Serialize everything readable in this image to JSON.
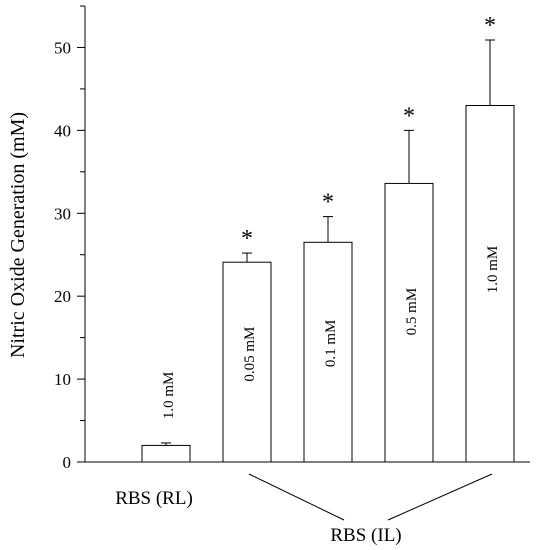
{
  "chart_data": {
    "type": "bar",
    "title": "",
    "xlabel": "",
    "ylabel": "Nitric Oxide Generation (mM)",
    "ylim": [
      0,
      55
    ],
    "yticks": [
      0,
      10,
      20,
      30,
      40,
      50
    ],
    "grid": false,
    "bars": [
      {
        "label": "1.0 mM",
        "value": 2.0,
        "error": 0.3,
        "significant": false
      },
      {
        "label": "0.05 mM",
        "value": 24.1,
        "error": 1.1,
        "significant": true
      },
      {
        "label": "0.1 mM",
        "value": 26.5,
        "error": 3.1,
        "significant": true
      },
      {
        "label": "0.5 mM",
        "value": 33.6,
        "error": 6.4,
        "significant": true
      },
      {
        "label": "1.0 mM",
        "value": 43.0,
        "error": 7.9,
        "significant": true
      }
    ],
    "significance_marker": "*",
    "groups": [
      {
        "label": "RBS (RL)",
        "bar_indices": [
          0
        ]
      },
      {
        "label": "RBS (IL)",
        "bar_indices": [
          1,
          2,
          3,
          4
        ]
      }
    ]
  }
}
